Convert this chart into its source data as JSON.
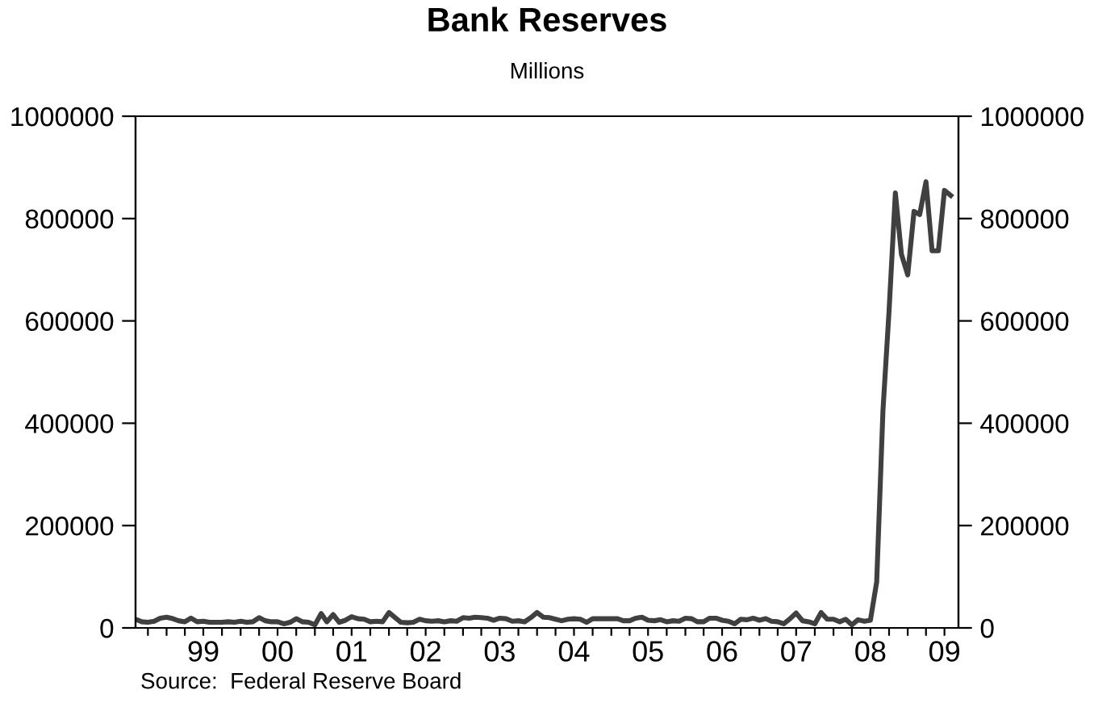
{
  "chart_data": {
    "type": "line",
    "title": "Bank Reserves",
    "subtitle": "Millions",
    "annotations": [
      "Source:  Federal Reserve Board"
    ],
    "x": [
      "1998-08",
      "1998-09",
      "1998-10",
      "1998-11",
      "1998-12",
      "1999-01",
      "1999-02",
      "1999-03",
      "1999-04",
      "1999-05",
      "1999-06",
      "1999-07",
      "1999-08",
      "1999-09",
      "1999-10",
      "1999-11",
      "1999-12",
      "2000-01",
      "2000-02",
      "2000-03",
      "2000-04",
      "2000-05",
      "2000-06",
      "2000-07",
      "2000-08",
      "2000-09",
      "2000-10",
      "2000-11",
      "2000-12",
      "2001-01",
      "2001-02",
      "2001-03",
      "2001-04",
      "2001-05",
      "2001-06",
      "2001-07",
      "2001-08",
      "2001-09",
      "2001-10",
      "2001-11",
      "2001-12",
      "2002-01",
      "2002-02",
      "2002-03",
      "2002-04",
      "2002-05",
      "2002-06",
      "2002-07",
      "2002-08",
      "2002-09",
      "2002-10",
      "2002-11",
      "2002-12",
      "2003-01",
      "2003-02",
      "2003-03",
      "2003-04",
      "2003-05",
      "2003-06",
      "2003-07",
      "2003-08",
      "2003-09",
      "2003-10",
      "2003-11",
      "2003-12",
      "2004-01",
      "2004-02",
      "2004-03",
      "2004-04",
      "2004-05",
      "2004-06",
      "2004-07",
      "2004-08",
      "2004-09",
      "2004-10",
      "2004-11",
      "2004-12",
      "2005-01",
      "2005-02",
      "2005-03",
      "2005-04",
      "2005-05",
      "2005-06",
      "2005-07",
      "2005-08",
      "2005-09",
      "2005-10",
      "2005-11",
      "2005-12",
      "2006-01",
      "2006-02",
      "2006-03",
      "2006-04",
      "2006-05",
      "2006-06",
      "2006-07",
      "2006-08",
      "2006-09",
      "2006-10",
      "2006-11",
      "2006-12",
      "2007-01",
      "2007-02",
      "2007-03",
      "2007-04",
      "2007-05",
      "2007-06",
      "2007-07",
      "2007-08",
      "2007-09",
      "2007-10",
      "2007-11",
      "2007-12",
      "2008-01",
      "2008-02",
      "2008-03",
      "2008-04",
      "2008-05",
      "2008-06",
      "2008-07",
      "2008-08",
      "2008-09",
      "2008-10",
      "2008-11",
      "2008-12",
      "2009-01",
      "2009-02",
      "2009-03",
      "2009-04",
      "2009-05",
      "2009-06",
      "2009-07",
      "2009-08"
    ],
    "series": [
      {
        "color": "#404040",
        "values": [
          17000,
          12000,
          11000,
          13000,
          19000,
          21000,
          18000,
          14000,
          12000,
          19000,
          12000,
          13000,
          11000,
          11000,
          11000,
          12000,
          11000,
          13000,
          11000,
          12000,
          20000,
          14000,
          12000,
          12000,
          8000,
          11000,
          18000,
          12000,
          11000,
          6000,
          28000,
          12000,
          26000,
          11000,
          15000,
          22000,
          18000,
          17000,
          12000,
          13000,
          12000,
          30000,
          20000,
          11000,
          10000,
          11000,
          17000,
          14000,
          13000,
          14000,
          12000,
          14000,
          13000,
          20000,
          19000,
          21000,
          20000,
          19000,
          15000,
          19000,
          18000,
          13000,
          14000,
          12000,
          20000,
          30000,
          21000,
          20000,
          17000,
          14000,
          17000,
          18000,
          17000,
          11000,
          18000,
          18000,
          18000,
          18000,
          18000,
          14000,
          14000,
          19000,
          21000,
          15000,
          14000,
          16000,
          12000,
          14000,
          13000,
          19000,
          18000,
          12000,
          12000,
          19000,
          19000,
          15000,
          13000,
          8000,
          17000,
          16000,
          19000,
          15000,
          18000,
          13000,
          12000,
          8000,
          18000,
          29000,
          14000,
          12000,
          8000,
          30000,
          17000,
          17000,
          12000,
          17000,
          6000,
          16000,
          13000,
          15000,
          90000,
          426000,
          620000,
          850000,
          730000,
          690000,
          814000,
          808000,
          872000,
          737000,
          737000,
          855000,
          845000
        ]
      }
    ],
    "xlim": [
      "1998-08-01",
      "2009-09-08"
    ],
    "xticks": [
      {
        "value": "1998-10-01",
        "label": null
      },
      {
        "value": "1999-01-01",
        "label": null
      },
      {
        "value": "1999-04-01",
        "label": null
      },
      {
        "value": "1999-07-01",
        "label": "99"
      },
      {
        "value": "1999-10-01",
        "label": null
      },
      {
        "value": "2000-01-01",
        "label": null
      },
      {
        "value": "2000-04-01",
        "label": null
      },
      {
        "value": "2000-07-01",
        "label": "00"
      },
      {
        "value": "2000-10-01",
        "label": null
      },
      {
        "value": "2001-01-01",
        "label": null
      },
      {
        "value": "2001-04-01",
        "label": null
      },
      {
        "value": "2001-07-01",
        "label": "01"
      },
      {
        "value": "2001-10-01",
        "label": null
      },
      {
        "value": "2002-01-01",
        "label": null
      },
      {
        "value": "2002-04-01",
        "label": null
      },
      {
        "value": "2002-07-01",
        "label": "02"
      },
      {
        "value": "2002-10-01",
        "label": null
      },
      {
        "value": "2003-01-01",
        "label": null
      },
      {
        "value": "2003-04-01",
        "label": null
      },
      {
        "value": "2003-07-01",
        "label": "03"
      },
      {
        "value": "2003-10-01",
        "label": null
      },
      {
        "value": "2004-01-01",
        "label": null
      },
      {
        "value": "2004-04-01",
        "label": null
      },
      {
        "value": "2004-07-01",
        "label": "04"
      },
      {
        "value": "2004-10-01",
        "label": null
      },
      {
        "value": "2005-01-01",
        "label": null
      },
      {
        "value": "2005-04-01",
        "label": null
      },
      {
        "value": "2005-07-01",
        "label": "05"
      },
      {
        "value": "2005-10-01",
        "label": null
      },
      {
        "value": "2006-01-01",
        "label": null
      },
      {
        "value": "2006-04-01",
        "label": null
      },
      {
        "value": "2006-07-01",
        "label": "06"
      },
      {
        "value": "2006-10-01",
        "label": null
      },
      {
        "value": "2007-01-01",
        "label": null
      },
      {
        "value": "2007-04-01",
        "label": null
      },
      {
        "value": "2007-07-01",
        "label": "07"
      },
      {
        "value": "2007-10-01",
        "label": null
      },
      {
        "value": "2008-01-01",
        "label": null
      },
      {
        "value": "2008-04-01",
        "label": null
      },
      {
        "value": "2008-07-01",
        "label": "08"
      },
      {
        "value": "2008-10-01",
        "label": null
      },
      {
        "value": "2009-01-01",
        "label": null
      },
      {
        "value": "2009-04-01",
        "label": null
      },
      {
        "value": "2009-07-01",
        "label": "09"
      }
    ],
    "ylim": [
      0,
      1000000
    ],
    "yticks": [
      0,
      200000,
      400000,
      600000,
      800000,
      1000000
    ],
    "y2lim": [
      0,
      1000000
    ],
    "y2ticks": [
      0,
      200000,
      400000,
      600000,
      800000,
      1000000
    ],
    "grid": false,
    "marker": "none",
    "line_style": "solid"
  }
}
